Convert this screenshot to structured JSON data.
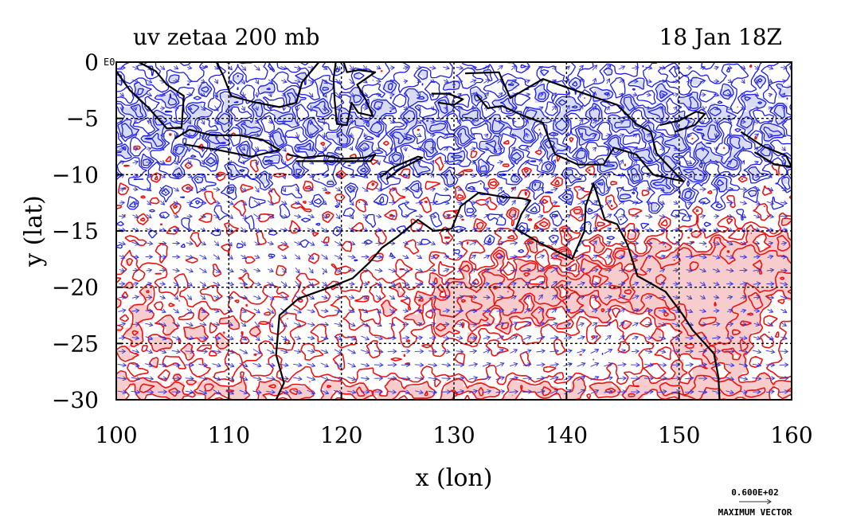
{
  "chart_data": {
    "type": "heatmap",
    "title_left": "uv zetaa 200 mb",
    "title_right": "18 Jan 18Z",
    "xlabel": "x (lon)",
    "ylabel": "y (lat)",
    "xlim": [
      100,
      160
    ],
    "ylim": [
      -30,
      0
    ],
    "x_ticks": [
      "100",
      "110",
      "120",
      "130",
      "140",
      "150",
      "160"
    ],
    "y_ticks": [
      "0",
      "−5",
      "−10",
      "−15",
      "−20",
      "−25",
      "−30"
    ],
    "corner_label": "E0",
    "grid": true,
    "reference_vector": {
      "magnitude": "0.600E+02",
      "label": "MAXIMUM VECTOR"
    },
    "colors": {
      "positive_line": "#ee1111",
      "negative_line": "#1a1aee",
      "positive_fill": "#f7cccc",
      "negative_fill": "#d8dcf3",
      "vector": "#3333dd",
      "coast": "#000000"
    },
    "coastlines": [
      {
        "name": "Australia",
        "points": [
          [
            114.2,
            -30
          ],
          [
            114.9,
            -28.5
          ],
          [
            114.2,
            -26
          ],
          [
            114.5,
            -22.5
          ],
          [
            116.2,
            -21
          ],
          [
            119,
            -20
          ],
          [
            121,
            -19.2
          ],
          [
            122.5,
            -17.8
          ],
          [
            123.6,
            -16.5
          ],
          [
            125,
            -15.5
          ],
          [
            126.8,
            -14
          ],
          [
            128.2,
            -15
          ],
          [
            129.8,
            -14.8
          ],
          [
            130.6,
            -12.8
          ],
          [
            132.2,
            -11.6
          ],
          [
            134.5,
            -12
          ],
          [
            136,
            -12.1
          ],
          [
            136.8,
            -12.3
          ],
          [
            136,
            -13.5
          ],
          [
            135.5,
            -14.8
          ],
          [
            137.5,
            -16
          ],
          [
            140.5,
            -17.5
          ],
          [
            141.6,
            -15
          ],
          [
            141.7,
            -12.8
          ],
          [
            142.4,
            -10.8
          ],
          [
            143.4,
            -14
          ],
          [
            144.5,
            -14.4
          ],
          [
            145.4,
            -16.2
          ],
          [
            146.3,
            -19
          ],
          [
            148.8,
            -20.4
          ],
          [
            150.3,
            -22.4
          ],
          [
            151.2,
            -23.8
          ],
          [
            153.1,
            -25.9
          ],
          [
            153.5,
            -28
          ],
          [
            153.6,
            -30
          ]
        ]
      },
      {
        "name": "New Guinea",
        "points": [
          [
            131,
            -1
          ],
          [
            134,
            -0.9
          ],
          [
            135,
            -3.2
          ],
          [
            137.9,
            -1.5
          ],
          [
            141,
            -2.6
          ],
          [
            144.5,
            -3.8
          ],
          [
            146.2,
            -5.5
          ],
          [
            147.5,
            -6.2
          ],
          [
            148,
            -8.1
          ],
          [
            149.6,
            -9.8
          ],
          [
            150.4,
            -10.6
          ],
          [
            147.7,
            -10
          ],
          [
            146.2,
            -8.2
          ],
          [
            144.2,
            -7.6
          ],
          [
            143.3,
            -9.1
          ],
          [
            141,
            -9.1
          ],
          [
            139,
            -8.2
          ],
          [
            138.6,
            -7.3
          ],
          [
            137.9,
            -5.4
          ],
          [
            136,
            -4.7
          ],
          [
            134.3,
            -3.9
          ],
          [
            133,
            -4.1
          ],
          [
            132,
            -2.9
          ]
        ]
      },
      {
        "name": "Timor",
        "points": [
          [
            123.5,
            -10.2
          ],
          [
            124.5,
            -9.4
          ],
          [
            126.8,
            -8.4
          ],
          [
            127.2,
            -8.5
          ],
          [
            125.2,
            -9.5
          ],
          [
            124,
            -10.4
          ]
        ]
      },
      {
        "name": "Java",
        "points": [
          [
            105.2,
            -6.8
          ],
          [
            106.5,
            -6
          ],
          [
            108.5,
            -6.5
          ],
          [
            111,
            -6.5
          ],
          [
            113,
            -6.9
          ],
          [
            114.5,
            -7.8
          ],
          [
            112,
            -8.4
          ],
          [
            109,
            -7.8
          ],
          [
            106,
            -7.3
          ]
        ]
      },
      {
        "name": "Sumatra",
        "points": [
          [
            100,
            -0.8
          ],
          [
            101.2,
            -2.5
          ],
          [
            102.8,
            -4
          ],
          [
            104.5,
            -5.9
          ],
          [
            105.8,
            -5.8
          ],
          [
            106,
            -3
          ],
          [
            104.5,
            -2
          ],
          [
            103.5,
            -0.8
          ],
          [
            102,
            0
          ]
        ]
      },
      {
        "name": "Borneo",
        "points": [
          [
            108.9,
            0
          ],
          [
            109.5,
            -1.2
          ],
          [
            110.2,
            -3
          ],
          [
            112,
            -3.5
          ],
          [
            114.5,
            -4
          ],
          [
            116,
            -3.6
          ],
          [
            116.5,
            -1.8
          ],
          [
            117.5,
            -0.6
          ],
          [
            118,
            0
          ]
        ]
      },
      {
        "name": "Sulawesi",
        "points": [
          [
            119.5,
            0
          ],
          [
            119.3,
            -1.5
          ],
          [
            119.4,
            -3.4
          ],
          [
            119.6,
            -5.5
          ],
          [
            120.5,
            -5.6
          ],
          [
            120.9,
            -3.6
          ],
          [
            121.5,
            -4.5
          ],
          [
            122.8,
            -4.8
          ],
          [
            122.2,
            -3.4
          ],
          [
            121.4,
            -2
          ],
          [
            123,
            -0.9
          ],
          [
            121.5,
            -0.7
          ],
          [
            120.5,
            -0.9
          ],
          [
            120.2,
            0
          ]
        ]
      },
      {
        "name": "Lesser Sunda",
        "points": [
          [
            115.2,
            -8.2
          ],
          [
            116.6,
            -8.5
          ],
          [
            118.5,
            -8.3
          ],
          [
            120,
            -8.6
          ],
          [
            122,
            -8.5
          ],
          [
            123,
            -8.2
          ],
          [
            122.6,
            -8.8
          ],
          [
            120.5,
            -8.8
          ],
          [
            118,
            -8.8
          ],
          [
            116,
            -8.8
          ]
        ]
      },
      {
        "name": "Seram",
        "points": [
          [
            128,
            -2.8
          ],
          [
            129.5,
            -2.8
          ],
          [
            130.8,
            -3.3
          ],
          [
            130,
            -3.8
          ],
          [
            128.6,
            -3.6
          ]
        ]
      },
      {
        "name": "New Britain",
        "points": [
          [
            148.3,
            -5.6
          ],
          [
            150,
            -5.2
          ],
          [
            151.5,
            -4.4
          ],
          [
            152.3,
            -4.6
          ],
          [
            151.4,
            -5.6
          ],
          [
            149.6,
            -6.2
          ]
        ]
      },
      {
        "name": "Solomons",
        "points": [
          [
            155.5,
            -6.2
          ],
          [
            157.5,
            -7.5
          ],
          [
            159.5,
            -8.3
          ],
          [
            160,
            -9.3
          ],
          [
            158.5,
            -9.1
          ],
          [
            156.7,
            -8
          ]
        ]
      }
    ]
  }
}
